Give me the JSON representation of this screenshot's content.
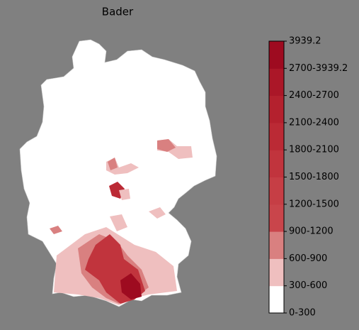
{
  "title": "Bader",
  "colorbar": {
    "labels": [
      "0-300",
      "300-600",
      "600-900",
      "900-1200",
      "1200-1500",
      "1500-1800",
      "1800-2100",
      "2100-2400",
      "2400-2700",
      "2700-3939.2",
      "3939.2"
    ],
    "colors": [
      "#ffffff",
      "#efbfbf",
      "#d98080",
      "#c9454b",
      "#c63e45",
      "#c1343d",
      "#bb2a35",
      "#b4212e",
      "#ab1728",
      "#9e0b20"
    ]
  }
}
